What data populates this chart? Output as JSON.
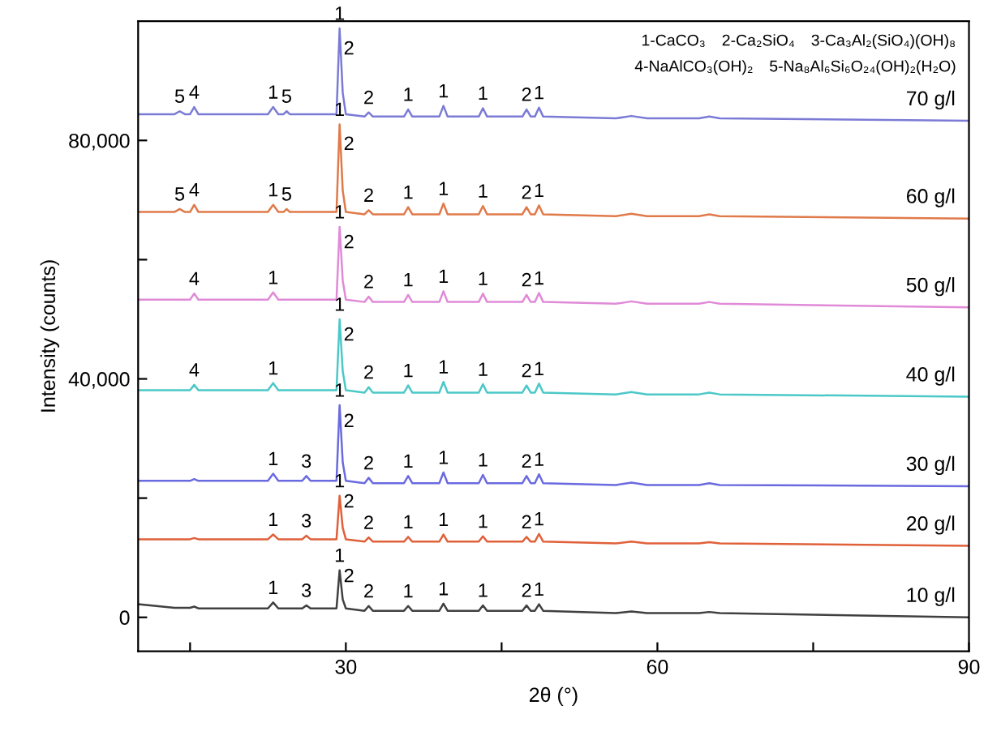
{
  "chart_data": {
    "type": "line",
    "xlabel": "2θ (°)",
    "ylabel": "Intensity (counts)",
    "xlim": [
      10,
      90
    ],
    "ylim": [
      -5700,
      100000
    ],
    "xticks": [
      {
        "value": 15,
        "label": null
      },
      30,
      {
        "value": 45,
        "label": null
      },
      60,
      {
        "value": 75,
        "label": null
      },
      90
    ],
    "yticks": [
      0,
      {
        "value": 20000,
        "label": null
      },
      {
        "value": 40000,
        "label": "40,000"
      },
      {
        "value": 60000,
        "label": null
      },
      {
        "value": 80000,
        "label": "80,000"
      }
    ],
    "grid": false,
    "legend": false,
    "marker": "none",
    "line_style": "solid",
    "x": [
      10,
      13.5,
      14.0,
      14.5,
      15.0,
      15.4,
      15.8,
      18,
      20,
      22.5,
      23.0,
      23.5,
      24.0,
      24.3,
      24.6,
      25.8,
      26.2,
      26.6,
      28.8,
      29.1,
      29.4,
      29.7,
      30.0,
      31.8,
      32.2,
      32.6,
      33.5,
      35.6,
      36.0,
      36.4,
      39.0,
      39.4,
      39.8,
      42.8,
      43.2,
      43.6,
      47.0,
      47.4,
      47.8,
      48.2,
      48.6,
      49.0,
      56,
      57.5,
      59,
      64,
      65,
      66,
      90
    ],
    "series": [
      {
        "name": "10 g/l",
        "color": "#404040",
        "values": [
          2200,
          1600,
          1600,
          1600,
          1600,
          1800,
          1500,
          1500,
          1500,
          1500,
          2500,
          1500,
          1500,
          1500,
          1500,
          1500,
          2000,
          1500,
          1500,
          1500,
          7900,
          3000,
          1500,
          1100,
          1900,
          1100,
          1100,
          1100,
          1900,
          1100,
          1100,
          2300,
          1100,
          1100,
          2000,
          1100,
          1100,
          2000,
          1100,
          1100,
          2200,
          1100,
          700,
          1000,
          700,
          700,
          900,
          700,
          0
        ]
      },
      {
        "name": "20 g/l",
        "color": "#e0603a",
        "values": [
          13100,
          13100,
          13100,
          13100,
          13100,
          13300,
          13100,
          13100,
          13100,
          13100,
          13900,
          13100,
          13100,
          13100,
          13100,
          13100,
          13700,
          13100,
          13100,
          13100,
          20400,
          15000,
          13100,
          12700,
          13400,
          12700,
          12700,
          12700,
          13500,
          12700,
          12700,
          13900,
          12700,
          12700,
          13600,
          12700,
          12700,
          13500,
          12700,
          12700,
          14000,
          12700,
          12400,
          12700,
          12400,
          12400,
          12600,
          12400,
          12000
        ]
      },
      {
        "name": "30 g/l",
        "color": "#6a6ae0",
        "values": [
          22900,
          22900,
          22900,
          22900,
          22900,
          23200,
          22900,
          22900,
          22900,
          22900,
          24100,
          22900,
          22900,
          22900,
          22900,
          22900,
          23700,
          22900,
          22900,
          22900,
          35600,
          26000,
          22900,
          22500,
          23400,
          22500,
          22500,
          22500,
          23700,
          22500,
          22500,
          24300,
          22500,
          22500,
          23900,
          22500,
          22500,
          23700,
          22500,
          22500,
          24000,
          22500,
          22200,
          22600,
          22200,
          22200,
          22500,
          22200,
          22000
        ]
      },
      {
        "name": "40 g/l",
        "color": "#4cc8c8",
        "values": [
          38100,
          38100,
          38100,
          38100,
          38100,
          39000,
          38100,
          38100,
          38100,
          38100,
          39300,
          38100,
          38100,
          38100,
          38100,
          38100,
          38100,
          38100,
          38100,
          38100,
          50000,
          41300,
          38100,
          37700,
          38600,
          37700,
          37700,
          37700,
          38900,
          37700,
          37700,
          39500,
          37700,
          37700,
          39100,
          37700,
          37700,
          38900,
          37700,
          37700,
          39200,
          37700,
          37400,
          37800,
          37400,
          37400,
          37700,
          37400,
          37000
        ]
      },
      {
        "name": "50 g/l",
        "color": "#e08ad8",
        "values": [
          53300,
          53300,
          53300,
          53300,
          53300,
          54300,
          53300,
          53300,
          53300,
          53300,
          54500,
          53300,
          53300,
          53300,
          53300,
          53300,
          53300,
          53300,
          53300,
          53300,
          65500,
          56500,
          53300,
          52900,
          53800,
          52900,
          52900,
          52900,
          54100,
          52900,
          52900,
          54700,
          52900,
          52900,
          54300,
          52900,
          52900,
          54100,
          52900,
          52900,
          54400,
          52900,
          52600,
          53000,
          52600,
          52600,
          52900,
          52600,
          52000
        ]
      },
      {
        "name": "60 g/l",
        "color": "#e07a4a",
        "values": [
          68000,
          68000,
          68500,
          68000,
          68000,
          69200,
          68000,
          68000,
          68000,
          68000,
          69200,
          68000,
          68000,
          68500,
          68000,
          68000,
          68000,
          68000,
          68000,
          68000,
          82700,
          71600,
          68000,
          67600,
          68300,
          67600,
          67600,
          67600,
          68800,
          67600,
          67600,
          69400,
          67600,
          67600,
          69000,
          67600,
          67600,
          68800,
          67600,
          67600,
          69100,
          67600,
          67300,
          67700,
          67300,
          67300,
          67600,
          67300,
          66900
        ]
      },
      {
        "name": "70 g/l",
        "color": "#7b7bd6",
        "values": [
          84400,
          84400,
          84900,
          84400,
          84400,
          85600,
          84400,
          84400,
          84400,
          84400,
          85600,
          84400,
          84400,
          84900,
          84400,
          84400,
          84400,
          84400,
          84400,
          84400,
          98800,
          88000,
          84400,
          84000,
          84700,
          84000,
          84000,
          84000,
          85200,
          84000,
          84000,
          85800,
          84000,
          84000,
          85400,
          84000,
          84000,
          85200,
          84000,
          84000,
          85500,
          84000,
          83700,
          84100,
          83700,
          83700,
          84000,
          83700,
          83300
        ]
      }
    ],
    "annotations": [
      "1-CaCO₃",
      "2-Ca₂SiO₄",
      "3-Ca₃Al₂(SiO₄)(OH)₈",
      "4-NaAlCO₃(OH)₂",
      "5-Na₈Al₆Si₆O₂₄(OH)₂(H₂O)",
      {
        "text": "5",
        "x": 14.0,
        "y": 84900
      },
      {
        "text": "4",
        "x": 15.4,
        "y": 85600
      },
      {
        "text": "1",
        "x": 23.0,
        "y": 85600
      },
      {
        "text": "5",
        "x": 24.3,
        "y": 84900
      },
      {
        "text": "1",
        "x": 29.4,
        "y": 98800
      },
      {
        "text": "2",
        "x": 30.3,
        "y": 93000
      },
      {
        "text": "2",
        "x": 32.2,
        "y": 84700
      },
      {
        "text": "1",
        "x": 36.0,
        "y": 85200
      },
      {
        "text": "1",
        "x": 39.4,
        "y": 85800
      },
      {
        "text": "1",
        "x": 43.2,
        "y": 85400
      },
      {
        "text": "2",
        "x": 47.4,
        "y": 85200
      },
      {
        "text": "1",
        "x": 48.6,
        "y": 85500
      },
      {
        "text": "5",
        "x": 14.0,
        "y": 68500
      },
      {
        "text": "4",
        "x": 15.4,
        "y": 69200
      },
      {
        "text": "1",
        "x": 23.0,
        "y": 69200
      },
      {
        "text": "5",
        "x": 24.3,
        "y": 68500
      },
      {
        "text": "1",
        "x": 29.4,
        "y": 82700
      },
      {
        "text": "2",
        "x": 30.3,
        "y": 77000
      },
      {
        "text": "2",
        "x": 32.2,
        "y": 68300
      },
      {
        "text": "1",
        "x": 36.0,
        "y": 68800
      },
      {
        "text": "1",
        "x": 39.4,
        "y": 69400
      },
      {
        "text": "1",
        "x": 43.2,
        "y": 69000
      },
      {
        "text": "2",
        "x": 47.4,
        "y": 68800
      },
      {
        "text": "1",
        "x": 48.6,
        "y": 69100
      },
      {
        "text": "4",
        "x": 15.4,
        "y": 54300
      },
      {
        "text": "1",
        "x": 23.0,
        "y": 54500
      },
      {
        "text": "1",
        "x": 29.4,
        "y": 65500
      },
      {
        "text": "2",
        "x": 30.3,
        "y": 60500
      },
      {
        "text": "2",
        "x": 32.2,
        "y": 53800
      },
      {
        "text": "1",
        "x": 36.0,
        "y": 54100
      },
      {
        "text": "1",
        "x": 39.4,
        "y": 54700
      },
      {
        "text": "1",
        "x": 43.2,
        "y": 54300
      },
      {
        "text": "2",
        "x": 47.4,
        "y": 54100
      },
      {
        "text": "1",
        "x": 48.6,
        "y": 54400
      },
      {
        "text": "4",
        "x": 15.4,
        "y": 39000
      },
      {
        "text": "1",
        "x": 23.0,
        "y": 39300
      },
      {
        "text": "1",
        "x": 29.4,
        "y": 50000
      },
      {
        "text": "2",
        "x": 30.3,
        "y": 45000
      },
      {
        "text": "2",
        "x": 32.2,
        "y": 38600
      },
      {
        "text": "1",
        "x": 36.0,
        "y": 38900
      },
      {
        "text": "1",
        "x": 39.4,
        "y": 39500
      },
      {
        "text": "1",
        "x": 43.2,
        "y": 39100
      },
      {
        "text": "2",
        "x": 47.4,
        "y": 38900
      },
      {
        "text": "1",
        "x": 48.6,
        "y": 39200
      },
      {
        "text": "1",
        "x": 23.0,
        "y": 24100
      },
      {
        "text": "3",
        "x": 26.2,
        "y": 23700
      },
      {
        "text": "1",
        "x": 29.4,
        "y": 35600
      },
      {
        "text": "2",
        "x": 30.3,
        "y": 30500
      },
      {
        "text": "2",
        "x": 32.2,
        "y": 23400
      },
      {
        "text": "1",
        "x": 36.0,
        "y": 23700
      },
      {
        "text": "1",
        "x": 39.4,
        "y": 24300
      },
      {
        "text": "1",
        "x": 43.2,
        "y": 23900
      },
      {
        "text": "2",
        "x": 47.4,
        "y": 23700
      },
      {
        "text": "1",
        "x": 48.6,
        "y": 24000
      },
      {
        "text": "1",
        "x": 23.0,
        "y": 13900
      },
      {
        "text": "3",
        "x": 26.2,
        "y": 13700
      },
      {
        "text": "1",
        "x": 29.4,
        "y": 20400
      },
      {
        "text": "2",
        "x": 30.3,
        "y": 17000
      },
      {
        "text": "2",
        "x": 32.2,
        "y": 13400
      },
      {
        "text": "1",
        "x": 36.0,
        "y": 13500
      },
      {
        "text": "1",
        "x": 39.4,
        "y": 13900
      },
      {
        "text": "1",
        "x": 43.2,
        "y": 13600
      },
      {
        "text": "2",
        "x": 47.4,
        "y": 13500
      },
      {
        "text": "1",
        "x": 48.6,
        "y": 14000
      },
      {
        "text": "1",
        "x": 23.0,
        "y": 2500
      },
      {
        "text": "3",
        "x": 26.2,
        "y": 2000
      },
      {
        "text": "1",
        "x": 29.4,
        "y": 7900
      },
      {
        "text": "2",
        "x": 30.3,
        "y": 4500
      },
      {
        "text": "2",
        "x": 32.2,
        "y": 1900
      },
      {
        "text": "1",
        "x": 36.0,
        "y": 1900
      },
      {
        "text": "1",
        "x": 39.4,
        "y": 2300
      },
      {
        "text": "1",
        "x": 43.2,
        "y": 2000
      },
      {
        "text": "2",
        "x": 47.4,
        "y": 2000
      },
      {
        "text": "1",
        "x": 48.6,
        "y": 2200
      }
    ]
  }
}
